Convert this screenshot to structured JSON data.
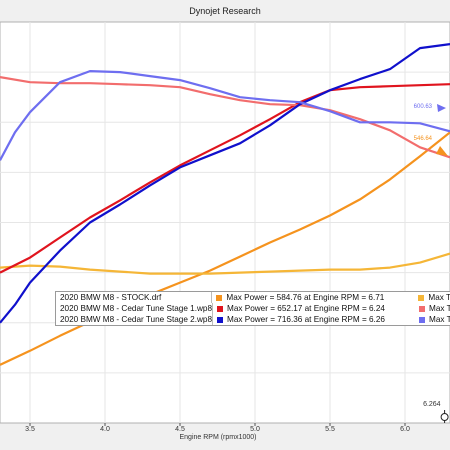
{
  "app_title": "Dynojet Research",
  "chart_data": {
    "type": "line",
    "title": "Dynojet Research",
    "xlabel": "Engine RPM (rpmx1000)",
    "ylabel": "",
    "xlim": [
      3.3,
      6.3
    ],
    "x_ticks": [
      "3.5",
      "4.0",
      "4.5",
      "5.0",
      "5.5",
      "6.0"
    ],
    "cursor_label": "6.264",
    "series": [
      {
        "name": "2020 BMW M8 - STOCK.drf (Power)",
        "color": "#f5931e",
        "x": [
          3.3,
          3.5,
          3.7,
          3.9,
          4.1,
          4.3,
          4.5,
          4.7,
          4.9,
          5.1,
          5.3,
          5.5,
          5.7,
          5.9,
          6.1,
          6.3
        ],
        "y": [
          358,
          372,
          387,
          401,
          415,
          428,
          440,
          452,
          466,
          480,
          493,
          507,
          523,
          543,
          566,
          590
        ]
      },
      {
        "name": "2020 BMW M8 - STOCK.drf (Torque)",
        "color": "#f5b637",
        "x": [
          3.3,
          3.5,
          3.7,
          3.9,
          4.1,
          4.3,
          4.5,
          4.7,
          4.9,
          5.1,
          5.3,
          5.5,
          5.7,
          5.9,
          6.1,
          6.3
        ],
        "y": [
          455,
          457,
          456,
          453,
          451,
          449,
          449,
          449,
          450,
          451,
          452,
          453,
          453,
          455,
          460,
          469
        ]
      },
      {
        "name": "2020 BMW M8 - Cedar Tune Stage 1.wp8 (Power)",
        "color": "#e0141e",
        "x": [
          3.3,
          3.5,
          3.7,
          3.9,
          4.1,
          4.3,
          4.5,
          4.7,
          4.9,
          5.1,
          5.3,
          5.5,
          5.7,
          5.9,
          6.1,
          6.3
        ],
        "y": [
          450,
          465,
          485,
          505,
          522,
          540,
          557,
          572,
          587,
          603,
          620,
          632,
          635,
          636,
          637,
          638
        ]
      },
      {
        "name": "2020 BMW M8 - Cedar Tune Stage 1.wp8 (Torque)",
        "color": "#f26d6d",
        "x": [
          3.3,
          3.5,
          3.7,
          3.9,
          4.1,
          4.3,
          4.5,
          4.7,
          4.9,
          5.1,
          5.3,
          5.5,
          5.7,
          5.9,
          6.1,
          6.3
        ],
        "y": [
          645,
          640,
          639,
          639,
          638,
          637,
          635,
          628,
          622,
          618,
          617,
          612,
          603,
          592,
          575,
          565
        ]
      },
      {
        "name": "2020 BMW M8 - Cedar Tune Stage 2.wp8 (Power)",
        "color": "#1010cc",
        "x": [
          3.3,
          3.4,
          3.5,
          3.7,
          3.9,
          4.1,
          4.3,
          4.5,
          4.7,
          4.9,
          5.1,
          5.3,
          5.5,
          5.7,
          5.9,
          6.1,
          6.3
        ],
        "y": [
          400,
          418,
          440,
          472,
          500,
          518,
          537,
          555,
          567,
          579,
          597,
          618,
          632,
          643,
          653,
          674,
          678
        ]
      },
      {
        "name": "2020 BMW M8 - Cedar Tune Stage 2.wp8 (Torque)",
        "color": "#6e6ef0",
        "x": [
          3.3,
          3.4,
          3.5,
          3.6,
          3.7,
          3.9,
          4.1,
          4.3,
          4.5,
          4.7,
          4.9,
          5.1,
          5.3,
          5.5,
          5.7,
          5.9,
          6.1,
          6.3
        ],
        "y": [
          562,
          590,
          610,
          625,
          640,
          651,
          650,
          646,
          642,
          634,
          625,
          622,
          620,
          611,
          600,
          600,
          599,
          591
        ]
      }
    ],
    "annotations": [
      {
        "label": "600.63",
        "color": "#6e6ef0"
      },
      {
        "label": "546.64",
        "color": "#f5931e"
      }
    ]
  },
  "legend": {
    "rows": [
      {
        "file": "2020 BMW M8 - STOCK.drf",
        "color": "#f5931e",
        "stat": "Max Power = 584.76 at Engine RPM = 6.71",
        "color2": "#f5b637",
        "stat2": "Max T"
      },
      {
        "file": "2020 BMW M8 - Cedar Tune Stage 1.wp8",
        "color": "#e0141e",
        "stat": "Max Power = 652.17 at Engine RPM = 6.24",
        "color2": "#f26d6d",
        "stat2": "Max T"
      },
      {
        "file": "2020 BMW M8 - Cedar Tune Stage 2.wp8",
        "color": "#1010cc",
        "stat": "Max Power = 716.36 at Engine RPM = 6.26",
        "color2": "#6e6ef0",
        "stat2": "Max T"
      }
    ]
  }
}
